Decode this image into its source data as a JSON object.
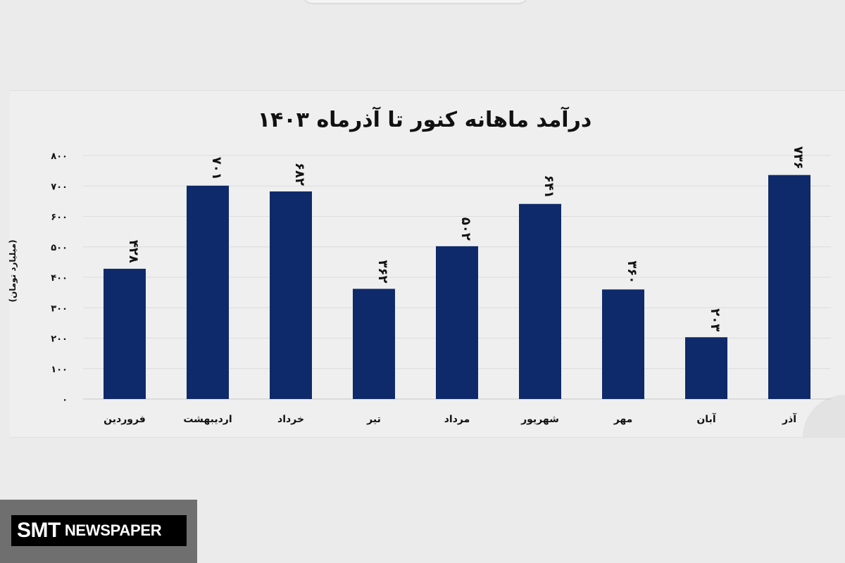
{
  "chart_data": {
    "type": "bar",
    "title": "درآمد ماهانه کنور تا آذرماه ۱۴۰۳",
    "ylabel": "(میلیارد تومان)",
    "xlabel": "",
    "categories": [
      "فروردین",
      "اردیبهشت",
      "خرداد",
      "تیر",
      "مرداد",
      "شهریور",
      "مهر",
      "آبان",
      "آذر"
    ],
    "values": [
      428,
      701,
      682,
      362,
      502,
      641,
      360,
      203,
      736
    ],
    "value_labels": [
      "۴۲۸",
      "۷۰۱",
      "۶۸۲",
      "۳۶۲",
      "۵۰۲",
      "۶۴۱",
      "۳۶۰",
      "۲۰۳",
      "۷۳۶"
    ],
    "yticks": [
      0,
      100,
      200,
      300,
      400,
      500,
      600,
      700,
      800
    ],
    "ytick_labels": [
      "۰",
      "۱۰۰",
      "۲۰۰",
      "۳۰۰",
      "۴۰۰",
      "۵۰۰",
      "۶۰۰",
      "۷۰۰",
      "۸۰۰"
    ],
    "ylim": [
      0,
      800
    ],
    "grid": true,
    "bar_color": "#0f2a6b"
  },
  "watermark": {
    "brand": "SMT",
    "text": "NEWSPAPER"
  }
}
